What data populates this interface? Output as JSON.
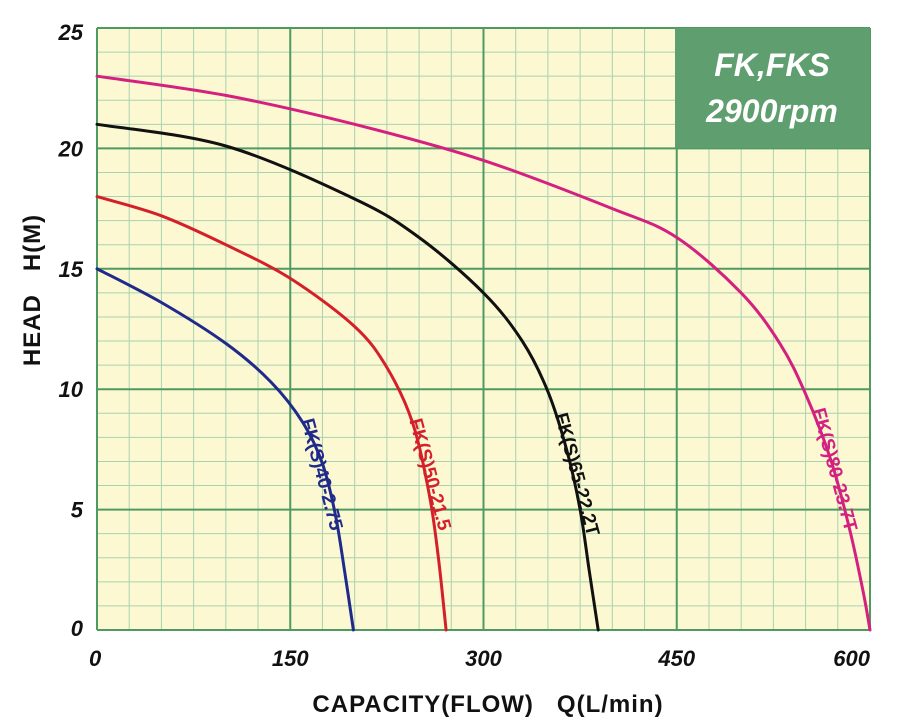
{
  "chart_data": {
    "type": "line",
    "title": "",
    "badge": {
      "line1": "FK,FKS",
      "line2": "2900rpm",
      "color": "#5f9e6e"
    },
    "xlabel": "CAPACITY(FLOW)   Q(L/min)",
    "ylabel": "HEAD   H(M)",
    "xlim": [
      0,
      600
    ],
    "ylim": [
      0,
      25
    ],
    "x_ticks": [
      0,
      150,
      300,
      450,
      600
    ],
    "y_ticks": [
      0,
      5,
      10,
      15,
      20,
      25
    ],
    "grid": true,
    "colors": {
      "plot_background": "#fcf8d2",
      "grid_major": "#4f9a62",
      "grid_minor": "#a9d2b0"
    },
    "series": [
      {
        "name": "FK(S)40-2.75",
        "color": "#1f2a8a",
        "points": [
          [
            0,
            15
          ],
          [
            50,
            13.6
          ],
          [
            100,
            11.9
          ],
          [
            135,
            10.3
          ],
          [
            160,
            8.6
          ],
          [
            175,
            6.9
          ],
          [
            185,
            4.8
          ],
          [
            192,
            2.5
          ],
          [
            199,
            0
          ]
        ]
      },
      {
        "name": "FK(S)50-21.5",
        "color": "#d4202a",
        "points": [
          [
            0,
            18
          ],
          [
            50,
            17.2
          ],
          [
            100,
            16.0
          ],
          [
            150,
            14.6
          ],
          [
            200,
            12.6
          ],
          [
            225,
            10.9
          ],
          [
            245,
            8.6
          ],
          [
            258,
            5.6
          ],
          [
            265,
            3.0
          ],
          [
            271,
            0
          ]
        ]
      },
      {
        "name": "FK(S)65-22.2T",
        "color": "#111111",
        "points": [
          [
            0,
            21
          ],
          [
            100,
            20.1
          ],
          [
            200,
            17.9
          ],
          [
            250,
            16.3
          ],
          [
            300,
            14.0
          ],
          [
            330,
            12.0
          ],
          [
            350,
            9.9
          ],
          [
            365,
            7.4
          ],
          [
            375,
            5.0
          ],
          [
            382,
            2.5
          ],
          [
            389,
            0
          ]
        ]
      },
      {
        "name": "FK(S)80-23.7T",
        "color": "#d4207e",
        "points": [
          [
            0,
            23
          ],
          [
            100,
            22.2
          ],
          [
            200,
            21.0
          ],
          [
            300,
            19.5
          ],
          [
            400,
            17.5
          ],
          [
            450,
            16.3
          ],
          [
            500,
            14.0
          ],
          [
            530,
            11.9
          ],
          [
            550,
            9.8
          ],
          [
            570,
            7.0
          ],
          [
            585,
            4.0
          ],
          [
            595,
            1.5
          ],
          [
            600,
            0
          ]
        ]
      }
    ]
  }
}
